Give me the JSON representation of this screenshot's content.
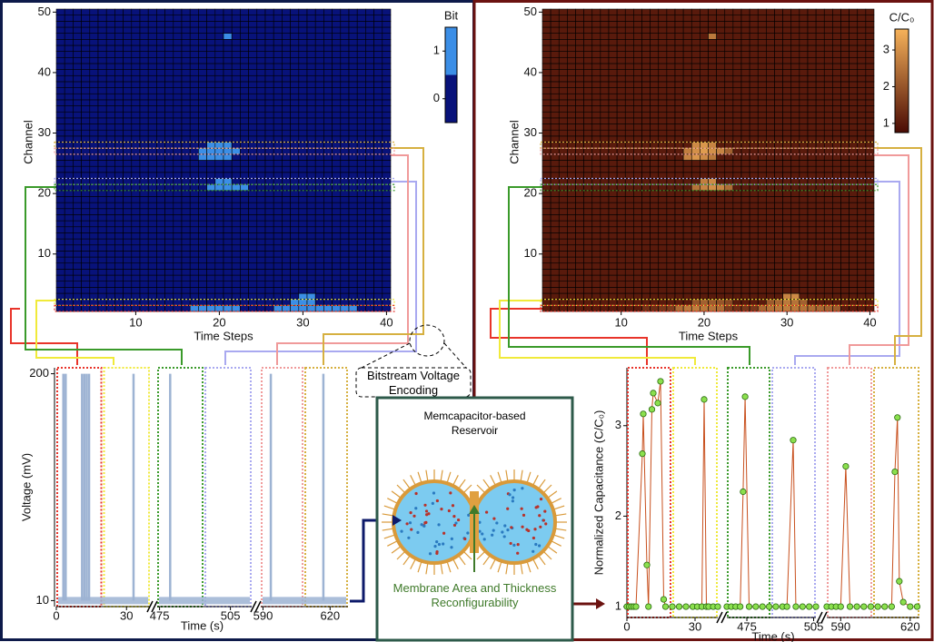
{
  "chart_data": [
    {
      "type": "heatmap",
      "xlabel": "Time Steps",
      "ylabel": "Channel",
      "xlim": [
        0.5,
        40.5
      ],
      "ylim": [
        0.5,
        50.5
      ],
      "xticks": [
        10,
        20,
        30,
        40
      ],
      "yticks": [
        10,
        20,
        30,
        40,
        50
      ],
      "colorbar": {
        "title": "Bit",
        "scale": "discrete",
        "clim": [
          -0.5,
          1.5
        ],
        "ticks": [
          0,
          1
        ],
        "colors": [
          "#08127a",
          "#3b8ee6"
        ]
      },
      "base_value": 0,
      "active_cells": [
        {
          "channel": 46,
          "steps": [
            21
          ],
          "values": [
            1
          ]
        },
        {
          "channel": 28,
          "steps": [
            19,
            20,
            21
          ],
          "values": [
            1,
            1,
            1
          ]
        },
        {
          "channel": 27,
          "steps": [
            18,
            19,
            20,
            21,
            22
          ],
          "values": [
            1,
            1,
            1,
            1,
            1
          ]
        },
        {
          "channel": 26,
          "steps": [
            18,
            19,
            20,
            21
          ],
          "values": [
            1,
            1,
            1,
            1
          ]
        },
        {
          "channel": 22,
          "steps": [
            20,
            21
          ],
          "values": [
            1,
            1
          ]
        },
        {
          "channel": 21,
          "steps": [
            19,
            20,
            21,
            22,
            23
          ],
          "values": [
            1,
            1,
            1,
            1,
            1
          ]
        },
        {
          "channel": 3,
          "steps": [
            30,
            31
          ],
          "values": [
            1,
            1
          ]
        },
        {
          "channel": 2,
          "steps": [
            29,
            30,
            31
          ],
          "values": [
            1,
            1,
            1
          ]
        },
        {
          "channel": 1,
          "steps": [
            17,
            18,
            19,
            20,
            21,
            22,
            27,
            28,
            29,
            30,
            31,
            32,
            33,
            34,
            35,
            36
          ],
          "values": [
            1,
            1,
            1,
            1,
            1,
            1,
            1,
            1,
            1,
            1,
            1,
            1,
            1,
            1,
            1,
            1
          ]
        }
      ]
    },
    {
      "type": "heatmap",
      "xlabel": "Time Steps",
      "ylabel": "Channel",
      "xlim": [
        0.5,
        40.5
      ],
      "ylim": [
        0.5,
        50.5
      ],
      "xticks": [
        10,
        20,
        30,
        40
      ],
      "yticks": [
        10,
        20,
        30,
        40,
        50
      ],
      "colorbar": {
        "title": "C/C₀",
        "scale": "continuous",
        "clim": [
          0.75,
          3.57
        ],
        "ticks": [
          1,
          2,
          3
        ],
        "colors": [
          "#4a0b04",
          "#f6b25a"
        ]
      },
      "base_value": 1,
      "active_cells": [
        {
          "channel": 46,
          "steps": [
            21
          ],
          "values": [
            2.6
          ]
        },
        {
          "channel": 28,
          "steps": [
            19,
            20,
            21
          ],
          "values": [
            2.9,
            3.1,
            2.8
          ]
        },
        {
          "channel": 27,
          "steps": [
            18,
            19,
            20,
            21,
            22,
            23
          ],
          "values": [
            2.7,
            3.0,
            3.2,
            3.0,
            2.8,
            2.2
          ]
        },
        {
          "channel": 26,
          "steps": [
            18,
            19,
            20,
            21
          ],
          "values": [
            2.8,
            3.1,
            2.9,
            2.6
          ]
        },
        {
          "channel": 22,
          "steps": [
            20,
            21
          ],
          "values": [
            2.7,
            2.9
          ]
        },
        {
          "channel": 21,
          "steps": [
            19,
            20,
            21,
            22,
            23
          ],
          "values": [
            2.5,
            2.8,
            3.0,
            2.8,
            2.4
          ]
        },
        {
          "channel": 3,
          "steps": [
            30,
            31
          ],
          "values": [
            2.8,
            2.9
          ]
        },
        {
          "channel": 2,
          "steps": [
            19,
            20,
            21,
            22,
            23,
            28,
            29,
            30,
            31,
            32
          ],
          "values": [
            2.0,
            2.2,
            2.1,
            2.0,
            1.8,
            2.1,
            2.3,
            2.6,
            2.5,
            2.2
          ]
        },
        {
          "channel": 1,
          "steps": [
            13,
            14,
            15,
            16,
            17,
            18,
            19,
            20,
            21,
            22,
            23,
            24,
            25,
            26,
            27,
            28,
            29,
            30,
            31,
            32,
            33,
            34,
            35,
            36
          ],
          "values": [
            1.4,
            1.3,
            1.5,
            1.6,
            2.4,
            2.6,
            2.7,
            2.6,
            2.5,
            2.4,
            1.6,
            1.4,
            1.5,
            1.5,
            2.3,
            2.5,
            2.6,
            2.7,
            2.6,
            2.5,
            2.4,
            2.3,
            2.2,
            2.1
          ]
        }
      ]
    },
    {
      "type": "spike-train",
      "ylabel": "Voltage (mV)",
      "xlabel": "Time (s)",
      "ylim": [
        5,
        205
      ],
      "yticks": [
        10,
        200
      ],
      "baseline": 10,
      "color": "#9db3d3",
      "segments": [
        {
          "xlim": [
            0,
            40
          ],
          "xticks": [
            0,
            30
          ],
          "spike_times": [
            3,
            4,
            11,
            12,
            13,
            14,
            33
          ],
          "spike_values": [
            200,
            200,
            200,
            200,
            200,
            200,
            200
          ]
        },
        {
          "xlim": [
            474,
            514
          ],
          "xticks": [
            475,
            505
          ],
          "spike_times": [
            479.5
          ],
          "spike_values": [
            200
          ]
        },
        {
          "xlim": [
            589,
            628
          ],
          "xticks": [
            590,
            620
          ],
          "spike_times": [
            593.5,
            617
          ],
          "spike_values": [
            200,
            200
          ]
        }
      ]
    },
    {
      "type": "scatter-line",
      "ylabel": "Normalized Capacitance (C/C₀)",
      "xlabel": "Time (s)",
      "ylim": [
        0.88,
        3.64
      ],
      "yticks": [
        1,
        2,
        3
      ],
      "marker_color": "#8be04e",
      "line_color": "#c8501e",
      "segments": [
        {
          "xlim": [
            0,
            40
          ],
          "xticks": [
            0,
            30
          ],
          "x": [
            0,
            1,
            2,
            3,
            4,
            6.8,
            7.2,
            8.8,
            9.5,
            11,
            11.6,
            13.6,
            14.8,
            16.2,
            17,
            20,
            23,
            26,
            29,
            31,
            33,
            34,
            35,
            36,
            38,
            40
          ],
          "values": [
            1,
            1,
            1,
            1,
            1,
            2.69,
            3.13,
            1.46,
            1,
            3.18,
            3.36,
            3.25,
            3.49,
            1.08,
            1,
            1,
            1,
            1,
            1,
            1,
            1,
            3.29,
            1,
            1,
            1,
            1
          ]
        },
        {
          "xlim": [
            466,
            506
          ],
          "xticks": [
            475,
            505
          ],
          "x": [
            466,
            468,
            470,
            472,
            473.3,
            474.2,
            476,
            479,
            482,
            485,
            488,
            491,
            493,
            495.8,
            497,
            500,
            503,
            506
          ],
          "values": [
            1,
            1,
            1,
            1,
            2.27,
            3.32,
            1,
            1,
            1,
            1,
            1,
            1,
            1,
            2.84,
            1,
            1,
            1,
            1
          ]
        },
        {
          "xlim": [
            584,
            624
          ],
          "xticks": [
            590,
            620
          ],
          "x": [
            584,
            586,
            588,
            590,
            592.2,
            594,
            597,
            600,
            603,
            606,
            609,
            612,
            613.4,
            614.5,
            615.3,
            617,
            620,
            623
          ],
          "values": [
            1,
            1,
            1,
            1,
            2.55,
            1,
            1,
            1,
            1,
            1,
            1,
            1,
            2.49,
            3.09,
            1.28,
            1.05,
            1,
            1
          ]
        }
      ]
    }
  ],
  "callout": "Bitstream Voltage Encoding",
  "reservoir": {
    "title": "Memcapacitor-based Reservoir",
    "caption": "Membrane Area and Thickness Reconfigurability"
  }
}
